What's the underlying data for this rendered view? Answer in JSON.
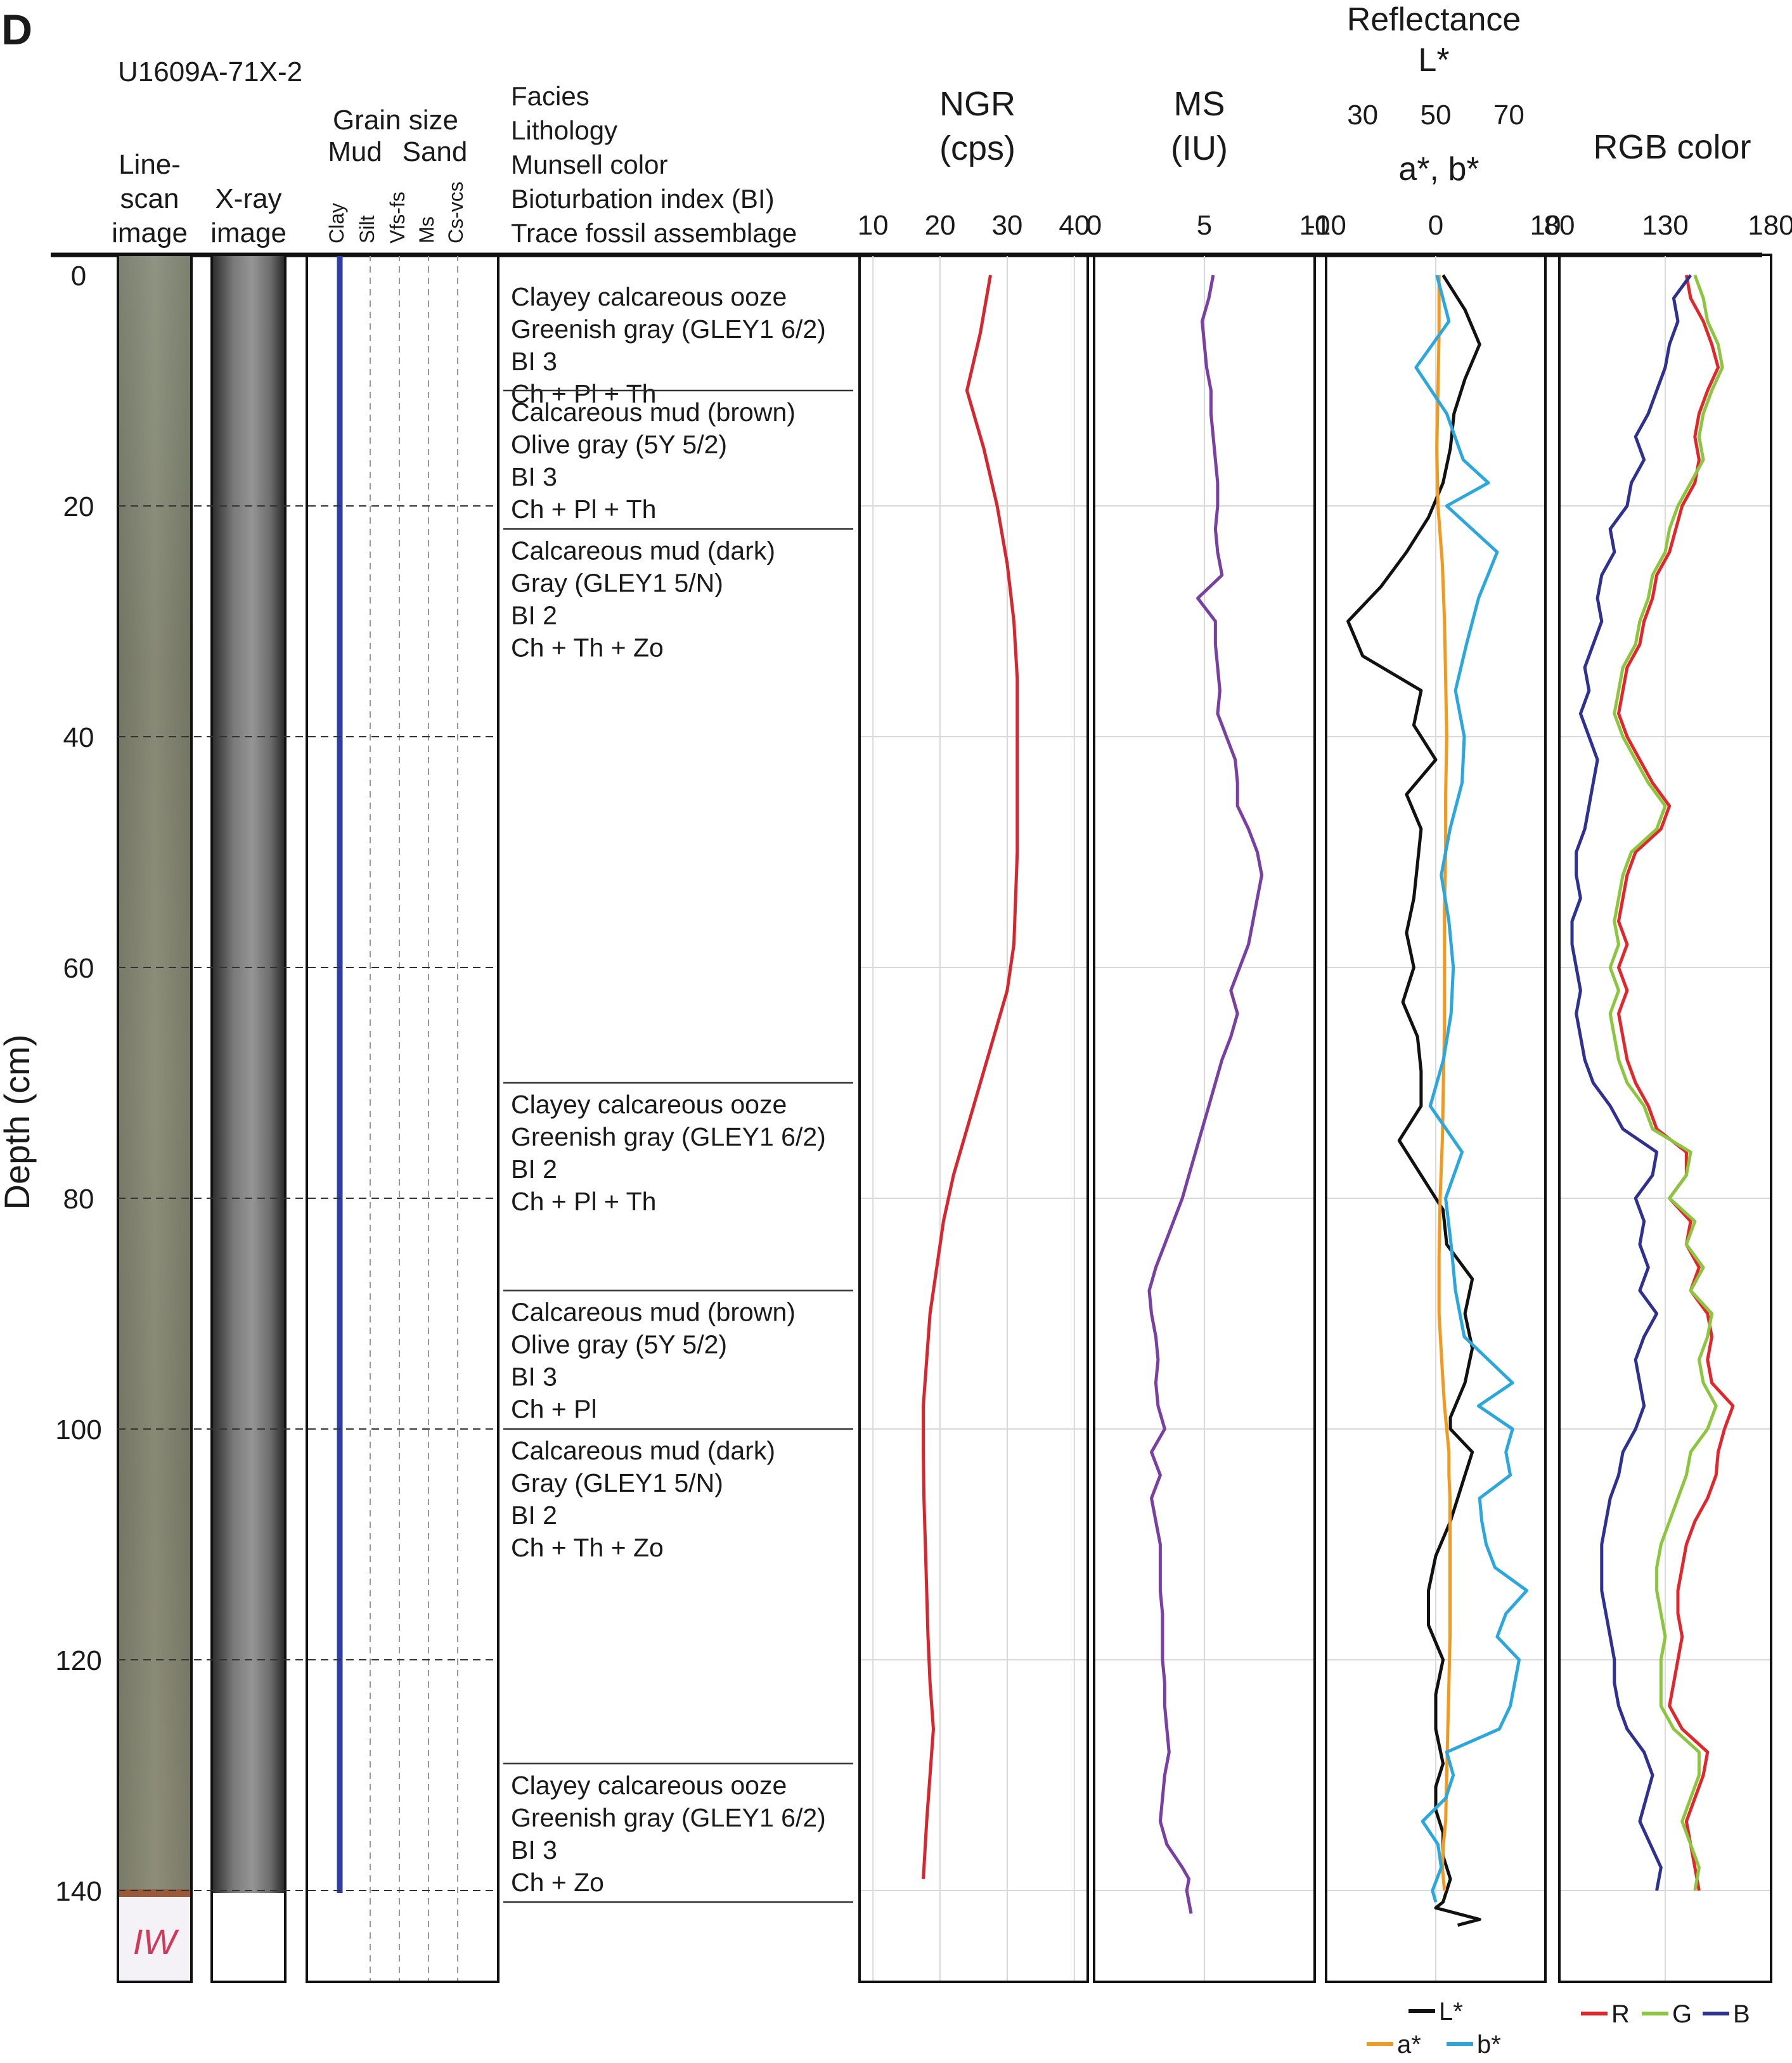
{
  "panel_label": "D",
  "core_id": "U1609A-71X-2",
  "headers": {
    "linescan": [
      "Line-",
      "scan",
      "image"
    ],
    "xray": [
      "X-ray",
      "image"
    ],
    "grain_title": "Grain size",
    "grain_mud": "Mud",
    "grain_sand": "Sand",
    "grain_cols": [
      "Clay",
      "Silt",
      "Vfs-fs",
      "Ms",
      "Cs-vcs"
    ],
    "facies": [
      "Facies",
      "Lithology",
      "Munsell color",
      "Bioturbation index (BI)",
      "Trace fossil assemblage"
    ],
    "ngr_title": [
      "NGR",
      "(cps)"
    ],
    "ms_title": [
      "MS",
      "(IU)"
    ],
    "refl_title": [
      "Reflectance",
      "L*"
    ],
    "refl_ab_title": "a*, b*",
    "rgb_title": "RGB color",
    "depth_label": "Depth (cm)",
    "iw_label": "IW"
  },
  "colors": {
    "ngr": "#d7262d",
    "ms": "#7a3fa3",
    "L": "#111111",
    "a": "#f39a1e",
    "b": "#2aa7de",
    "R": "#e3262b",
    "G": "#8cc63f",
    "B": "#2e3192",
    "clay_line": "#2e3da8"
  },
  "depth_ticks": [
    0,
    20,
    40,
    60,
    80,
    100,
    120,
    140
  ],
  "facies": [
    {
      "top": 0,
      "base": 10,
      "lines": [
        "Clayey calcareous ooze",
        "Greenish gray (GLEY1 6/2)",
        "BI 3",
        "Ch + Pl + Th"
      ]
    },
    {
      "top": 10,
      "base": 22,
      "lines": [
        "Calcareous mud (brown)",
        "Olive gray (5Y 5/2)",
        "BI 3",
        "Ch + Pl + Th"
      ]
    },
    {
      "top": 22,
      "base": 70,
      "lines": [
        "Calcareous mud (dark)",
        "Gray (GLEY1 5/N)",
        "BI 2",
        "Ch + Th + Zo"
      ]
    },
    {
      "top": 70,
      "base": 88,
      "lines": [
        "Clayey calcareous ooze",
        "Greenish gray (GLEY1 6/2)",
        "BI 2",
        "Ch + Pl + Th"
      ]
    },
    {
      "top": 88,
      "base": 100,
      "lines": [
        "Calcareous mud (brown)",
        "Olive gray (5Y 5/2)",
        "BI 3",
        "Ch + Pl"
      ]
    },
    {
      "top": 100,
      "base": 129,
      "lines": [
        "Calcareous mud (dark)",
        "Gray (GLEY1 5/N)",
        "BI 2",
        "Ch + Th + Zo"
      ]
    },
    {
      "top": 129,
      "base": 141,
      "lines": [
        "Clayey calcareous ooze",
        "Greenish gray (GLEY1 6/2)",
        "BI 3",
        "Ch + Zo"
      ]
    }
  ],
  "chart_data": [
    {
      "type": "line",
      "title": "NGR",
      "xlabel": "(cps)",
      "ylabel": "Depth (cm)",
      "xlim": [
        8,
        42
      ],
      "ylim": [
        150,
        -2
      ],
      "xticks": [
        10,
        20,
        30,
        40
      ],
      "x": [
        27.5,
        26,
        24,
        26.5,
        28.5,
        30,
        31,
        31.5,
        31.5,
        31.5,
        31,
        30,
        28,
        26,
        24,
        22,
        20.5,
        19.5,
        18.5,
        18,
        17.5,
        17.5,
        17.6,
        17.8,
        18,
        18.2,
        18.5,
        19,
        18.5,
        18,
        17.5
      ],
      "y": [
        0,
        5,
        10,
        15,
        20,
        25,
        30,
        35,
        40,
        50,
        58,
        62,
        66,
        70,
        74,
        78,
        82,
        86,
        90,
        94,
        98,
        102,
        106,
        110,
        114,
        118,
        122,
        126,
        130,
        134,
        139
      ]
    },
    {
      "type": "line",
      "title": "MS",
      "xlabel": "(IU)",
      "ylabel": "Depth (cm)",
      "xlim": [
        0,
        10
      ],
      "ylim": [
        150,
        -2
      ],
      "xticks": [
        0,
        5,
        10
      ],
      "x": [
        5.4,
        5.2,
        4.9,
        5.0,
        5.1,
        5.3,
        5.3,
        5.4,
        5.5,
        5.6,
        5.6,
        5.5,
        5.6,
        5.8,
        4.7,
        5.5,
        5.5,
        5.6,
        5.7,
        5.6,
        6.0,
        6.4,
        6.5,
        6.5,
        7.0,
        7.4,
        7.6,
        7.4,
        7.2,
        7.0,
        6.6,
        6.2,
        6.5,
        6.2,
        5.8,
        5.5,
        5.2,
        4.9,
        4.6,
        4.3,
        4.0,
        3.6,
        3.2,
        2.8,
        2.5,
        2.6,
        2.8,
        2.9,
        2.8,
        2.9,
        3.2,
        2.6,
        3.0,
        2.6,
        2.8,
        3.0,
        3.0,
        3.0,
        3.1,
        3.1,
        3.1,
        3.2,
        3.2,
        3.3,
        3.4,
        3.2,
        3.1,
        3.0,
        3.3,
        4.0,
        4.3,
        4.2,
        4.3,
        4.4
      ],
      "y": [
        0,
        2,
        4,
        6,
        8,
        10,
        12,
        14,
        16,
        18,
        20,
        22,
        24,
        26,
        28,
        30,
        32,
        34,
        36,
        38,
        40,
        42,
        44,
        46,
        48,
        50,
        52,
        54,
        56,
        58,
        60,
        62,
        64,
        66,
        68,
        70,
        72,
        74,
        76,
        78,
        80,
        82,
        84,
        86,
        88,
        90,
        92,
        94,
        96,
        98,
        100,
        102,
        104,
        106,
        108,
        110,
        112,
        114,
        116,
        118,
        120,
        122,
        124,
        126,
        128,
        130,
        132,
        134,
        136,
        138,
        139,
        140,
        141,
        142
      ]
    },
    {
      "type": "line",
      "title": "Reflectance",
      "xlabel": "L*",
      "x2label": "a*, b*",
      "ylabel": "Depth (cm)",
      "xlim": [
        20,
        80
      ],
      "x2lim": [
        -10,
        10
      ],
      "ylim": [
        150,
        -2
      ],
      "xticks": [
        30,
        50,
        70
      ],
      "x2ticks": [
        -10,
        0,
        10
      ],
      "series": [
        {
          "name": "L*",
          "axis": "x",
          "x": [
            52,
            58,
            62,
            58,
            55,
            54,
            52,
            48,
            42,
            35,
            26,
            30,
            46,
            44,
            50,
            42,
            46,
            45,
            44,
            42,
            44,
            41,
            45,
            46,
            46,
            40,
            46,
            52,
            53,
            60,
            58,
            60,
            58,
            54,
            54,
            60,
            58,
            56,
            54,
            50,
            48,
            48,
            52,
            50,
            50,
            52,
            50,
            50,
            52,
            52,
            54,
            52,
            50,
            56,
            62,
            56
          ],
          "y": [
            0,
            3,
            6,
            9,
            12,
            15,
            18,
            21,
            24,
            27,
            30,
            33,
            36,
            39,
            42,
            45,
            48,
            51,
            54,
            57,
            60,
            63,
            66,
            69,
            72,
            75,
            78,
            81,
            84,
            87,
            90,
            93,
            96,
            99,
            100,
            102,
            104,
            106,
            108,
            111,
            114,
            117,
            120,
            123,
            126,
            129,
            131,
            133,
            135,
            137,
            139,
            141,
            141.5,
            142,
            142.5,
            143
          ]
        },
        {
          "name": "a*",
          "axis": "x2",
          "x": [
            0.3,
            0.3,
            0.2,
            0.1,
            0.2,
            0.6,
            0.8,
            0.9,
            1.0,
            0.9,
            0.9,
            0.8,
            0.8,
            0.8,
            0.7,
            0.6,
            0.4,
            0.3,
            0.3,
            0.6,
            0.8,
            1.0,
            1.2,
            1.2,
            1.3,
            1.3,
            1.3,
            1.3,
            1.2,
            1.1,
            1.0,
            0.9,
            0.7,
            0.6,
            0.8
          ],
          "y": [
            0,
            5,
            10,
            15,
            20,
            25,
            30,
            35,
            40,
            45,
            50,
            55,
            60,
            65,
            70,
            75,
            80,
            85,
            90,
            95,
            98,
            100,
            102,
            104,
            106,
            110,
            114,
            118,
            122,
            126,
            130,
            134,
            136,
            138,
            140
          ]
        },
        {
          "name": "b*",
          "axis": "x2",
          "x": [
            0.1,
            1.2,
            -1.8,
            1.0,
            2.5,
            4.8,
            1.0,
            5.6,
            3.9,
            2.8,
            1.8,
            2.6,
            2.4,
            1.3,
            0.5,
            1.2,
            1.6,
            1.4,
            0.7,
            -0.5,
            2.4,
            0.9,
            1.4,
            1.8,
            2.6,
            4.8,
            7.0,
            3.9,
            7.0,
            6.4,
            6.8,
            4.0,
            4.2,
            4.6,
            5.4,
            8.3,
            6.4,
            5.6,
            7.6,
            7.2,
            6.8,
            5.8,
            1.0,
            1.6,
            0.9,
            -1.2,
            0.2,
            0.5,
            -0.3,
            0.0
          ],
          "y": [
            0,
            4,
            8,
            12,
            16,
            18,
            20,
            24,
            28,
            32,
            36,
            40,
            44,
            48,
            52,
            56,
            60,
            64,
            68,
            72,
            76,
            80,
            84,
            88,
            92,
            94,
            96,
            98,
            100,
            102,
            104,
            106,
            108,
            110,
            112,
            114,
            116,
            118,
            120,
            122,
            124,
            126,
            128,
            130,
            132,
            134,
            136,
            138,
            140,
            141
          ]
        }
      ]
    },
    {
      "type": "line",
      "title": "RGB color",
      "ylabel": "Depth (cm)",
      "xlim": [
        80,
        180
      ],
      "ylim": [
        150,
        -2
      ],
      "xticks": [
        80,
        130,
        180
      ],
      "series": [
        {
          "name": "R",
          "x": [
            140,
            142,
            148,
            152,
            155,
            150,
            146,
            144,
            146,
            144,
            138,
            135,
            132,
            126,
            124,
            120,
            118,
            112,
            110,
            108,
            112,
            118,
            124,
            132,
            128,
            116,
            112,
            110,
            108,
            112,
            108,
            112,
            108,
            110,
            112,
            116,
            122,
            126,
            140,
            140,
            132,
            142,
            140,
            146,
            142,
            150,
            152,
            150,
            152,
            162,
            158,
            155,
            154,
            150,
            144,
            140,
            138,
            136,
            136,
            138,
            136,
            134,
            132,
            138,
            150,
            148,
            140,
            144,
            146
          ],
          "y": [
            0,
            2,
            4,
            6,
            8,
            10,
            12,
            14,
            16,
            18,
            20,
            22,
            24,
            26,
            28,
            30,
            32,
            34,
            36,
            38,
            40,
            42,
            44,
            46,
            48,
            50,
            52,
            54,
            56,
            58,
            60,
            62,
            64,
            66,
            68,
            70,
            72,
            74,
            76,
            78,
            80,
            82,
            84,
            86,
            88,
            90,
            92,
            94,
            96,
            98,
            100,
            102,
            104,
            106,
            108,
            110,
            112,
            114,
            116,
            118,
            120,
            122,
            124,
            126,
            128,
            130,
            134,
            138,
            140
          ]
        },
        {
          "name": "G",
          "x": [
            144,
            148,
            150,
            155,
            157,
            152,
            148,
            146,
            148,
            142,
            136,
            132,
            130,
            124,
            122,
            118,
            116,
            110,
            108,
            106,
            110,
            116,
            122,
            130,
            126,
            114,
            110,
            108,
            106,
            108,
            104,
            108,
            104,
            106,
            108,
            112,
            120,
            124,
            142,
            140,
            132,
            144,
            140,
            148,
            142,
            152,
            150,
            146,
            148,
            154,
            150,
            142,
            140,
            136,
            132,
            128,
            126,
            126,
            128,
            130,
            128,
            128,
            128,
            134,
            146,
            146,
            138,
            146,
            144
          ],
          "y": [
            0,
            2,
            4,
            6,
            8,
            10,
            12,
            14,
            16,
            18,
            20,
            22,
            24,
            26,
            28,
            30,
            32,
            34,
            36,
            38,
            40,
            42,
            44,
            46,
            48,
            50,
            52,
            54,
            56,
            58,
            60,
            62,
            64,
            66,
            68,
            70,
            72,
            74,
            76,
            78,
            80,
            82,
            84,
            86,
            88,
            90,
            92,
            94,
            96,
            98,
            100,
            102,
            104,
            106,
            108,
            110,
            112,
            114,
            116,
            118,
            120,
            122,
            124,
            126,
            128,
            130,
            134,
            138,
            140
          ]
        },
        {
          "name": "B",
          "x": [
            142,
            134,
            136,
            132,
            130,
            126,
            122,
            116,
            120,
            114,
            112,
            104,
            106,
            100,
            98,
            100,
            96,
            92,
            94,
            90,
            94,
            98,
            96,
            94,
            92,
            88,
            88,
            90,
            86,
            86,
            88,
            90,
            88,
            90,
            92,
            96,
            104,
            110,
            126,
            124,
            116,
            120,
            118,
            122,
            118,
            126,
            120,
            116,
            118,
            120,
            116,
            110,
            108,
            104,
            102,
            100,
            100,
            100,
            102,
            104,
            106,
            106,
            108,
            112,
            120,
            124,
            118,
            128,
            126
          ],
          "y": [
            0,
            2,
            4,
            6,
            8,
            10,
            12,
            14,
            16,
            18,
            20,
            22,
            24,
            26,
            28,
            30,
            32,
            34,
            36,
            38,
            40,
            42,
            44,
            46,
            48,
            50,
            52,
            54,
            56,
            58,
            60,
            62,
            64,
            66,
            68,
            70,
            72,
            74,
            76,
            78,
            80,
            82,
            84,
            86,
            88,
            90,
            92,
            94,
            96,
            98,
            100,
            102,
            104,
            106,
            108,
            110,
            112,
            114,
            116,
            118,
            120,
            122,
            124,
            126,
            128,
            130,
            134,
            138,
            140
          ]
        }
      ]
    }
  ]
}
